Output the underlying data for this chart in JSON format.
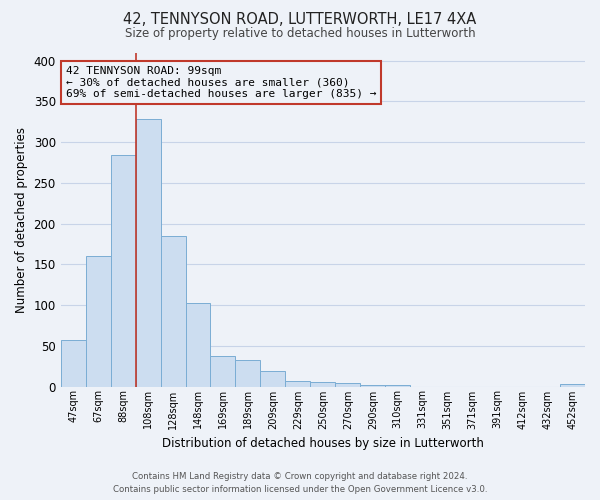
{
  "title": "42, TENNYSON ROAD, LUTTERWORTH, LE17 4XA",
  "subtitle": "Size of property relative to detached houses in Lutterworth",
  "xlabel": "Distribution of detached houses by size in Lutterworth",
  "ylabel": "Number of detached properties",
  "bar_color": "#ccddf0",
  "bar_edge_color": "#7aadd4",
  "property_line_color": "#c0392b",
  "annotation_box_edge": "#c0392b",
  "tick_labels": [
    "47sqm",
    "67sqm",
    "88sqm",
    "108sqm",
    "128sqm",
    "148sqm",
    "169sqm",
    "189sqm",
    "209sqm",
    "229sqm",
    "250sqm",
    "270sqm",
    "290sqm",
    "310sqm",
    "331sqm",
    "351sqm",
    "371sqm",
    "391sqm",
    "412sqm",
    "432sqm",
    "452sqm"
  ],
  "bar_heights": [
    57,
    160,
    284,
    328,
    185,
    103,
    38,
    32,
    19,
    7,
    5,
    4,
    2,
    2,
    0,
    0,
    0,
    0,
    0,
    0,
    3
  ],
  "property_label": "42 TENNYSON ROAD: 99sqm",
  "annotation_line1": "← 30% of detached houses are smaller (360)",
  "annotation_line2": "69% of semi-detached houses are larger (835) →",
  "ylim": [
    0,
    410
  ],
  "yticks": [
    0,
    50,
    100,
    150,
    200,
    250,
    300,
    350,
    400
  ],
  "footer_line1": "Contains HM Land Registry data © Crown copyright and database right 2024.",
  "footer_line2": "Contains public sector information licensed under the Open Government Licence v3.0.",
  "background_color": "#eef2f8",
  "grid_color": "#c8d4e8"
}
